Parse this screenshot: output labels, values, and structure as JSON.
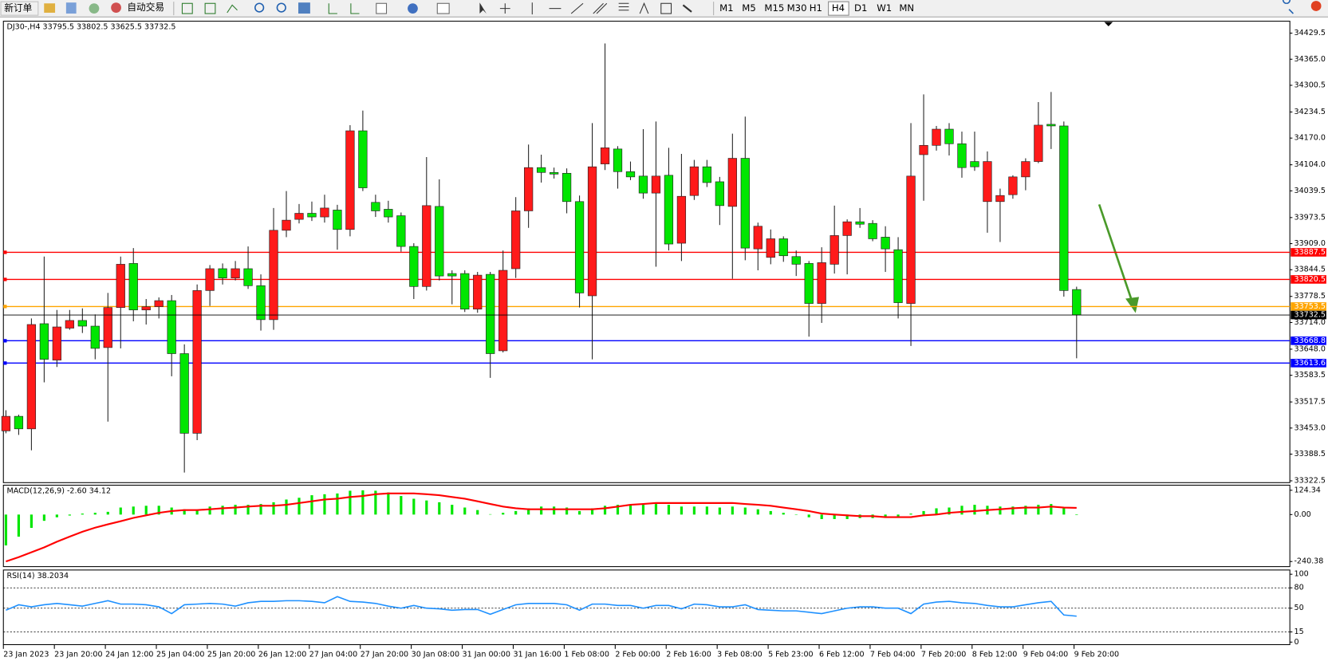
{
  "toolbar": {
    "buttons": [
      "新订单",
      "自动交易"
    ],
    "timeframes": [
      "M1",
      "M5",
      "M15",
      "M30",
      "H1",
      "H4",
      "D1",
      "W1",
      "MN"
    ],
    "active_timeframe": 5
  },
  "chart_data": [
    {
      "type": "candlestick",
      "title": "DJ30-,H4 33795.5 33802.5 33625.5 33732.5",
      "categories": [
        "23 Jan 2023",
        null,
        null,
        null,
        "23 Jan 20:00",
        null,
        null,
        null,
        "24 Jan 12:00",
        null,
        null,
        null,
        "25 Jan 04:00",
        null,
        null,
        null,
        "25 Jan 20:00",
        null,
        null,
        null,
        "26 Jan 12:00",
        null,
        null,
        null,
        "27 Jan 04:00",
        null,
        null,
        null,
        "27 Jan 20:00",
        null,
        null,
        null,
        "30 Jan 08:00",
        null,
        null,
        null,
        "31 Jan 00:00",
        null,
        null,
        null,
        "31 Jan 16:00",
        null,
        null,
        null,
        "1 Feb 08:00",
        null,
        null,
        null,
        "2 Feb 00:00",
        null,
        null,
        null,
        "2 Feb 16:00",
        null,
        null,
        null,
        "3 Feb 08:00",
        null,
        null,
        null,
        "5 Feb 23:00",
        null,
        null,
        null,
        "6 Feb 12:00",
        null,
        null,
        null,
        "7 Feb 04:00",
        null,
        null,
        null,
        "7 Feb 20:00",
        null,
        null,
        null,
        "8 Feb 12:00",
        null,
        null,
        null,
        "9 Feb 04:00",
        null,
        null,
        null,
        "9 Feb 20:00"
      ],
      "open": [
        33446,
        33482,
        33451,
        33711,
        33621,
        33700,
        33719,
        33705,
        33652,
        33751,
        33860,
        33745,
        33753,
        33768,
        33637,
        33440,
        33793,
        33847,
        33824,
        33847,
        33805,
        33721,
        33942,
        33969,
        33984,
        33975,
        33992,
        33944,
        34188,
        34011,
        33994,
        33978,
        33902,
        33803,
        34001,
        33835,
        33835,
        33747,
        33833,
        33644,
        33847,
        33990,
        34097,
        34085,
        34083,
        34013,
        33780,
        34106,
        34143,
        34087,
        34076,
        34034,
        34078,
        33910,
        34028,
        34099,
        34062,
        34001,
        34120,
        33896,
        33875,
        33921,
        33877,
        33860,
        33761,
        33858,
        33929,
        33963,
        33959,
        33925,
        33894,
        33761,
        34129,
        34152,
        34192,
        34156,
        34112,
        34013,
        34013,
        34030,
        34074,
        34112,
        34204,
        34200,
        33795.5
      ],
      "high": [
        33497,
        33486,
        33724,
        33877,
        33745,
        33745,
        33749,
        33734,
        33787,
        33877,
        33898,
        33772,
        33776,
        33782,
        33660,
        33808,
        33856,
        33860,
        33866,
        33902,
        33833,
        33997,
        34039,
        34007,
        34013,
        34030,
        34005,
        34202,
        34238,
        34030,
        34015,
        33986,
        33910,
        34123,
        34068,
        33843,
        33843,
        33839,
        33839,
        33892,
        34024,
        34154,
        34129,
        34097,
        34095,
        34028,
        34207,
        34404,
        34150,
        34112,
        34192,
        34211,
        34146,
        34131,
        34116,
        34116,
        34074,
        34181,
        34223,
        33961,
        33944,
        33927,
        33892,
        33866,
        33900,
        34003,
        33969,
        33997,
        33967,
        33952,
        33925,
        34207,
        34278,
        34200,
        34207,
        34186,
        34186,
        34137,
        34045,
        34078,
        34120,
        34259,
        34284,
        34211,
        33802.5
      ],
      "low": [
        33440,
        33436,
        33398,
        33566,
        33604,
        33696,
        33688,
        33623,
        33469,
        33650,
        33717,
        33709,
        33724,
        33581,
        33343,
        33423,
        33755,
        33808,
        33818,
        33797,
        33694,
        33696,
        33925,
        33959,
        33965,
        33961,
        33894,
        33927,
        34039,
        33975,
        33961,
        33889,
        33772,
        33793,
        33818,
        33759,
        33740,
        33738,
        33577,
        33640,
        33824,
        33948,
        34060,
        34070,
        33984,
        33751,
        33623,
        34091,
        34045,
        34066,
        34020,
        33852,
        33892,
        33866,
        34017,
        34049,
        33955,
        33822,
        33868,
        33843,
        33858,
        33864,
        33829,
        33679,
        33713,
        33835,
        33833,
        33948,
        33915,
        33839,
        33724,
        33656,
        34015,
        34139,
        34127,
        34072,
        34089,
        33936,
        33913,
        34020,
        34041,
        34108,
        34143,
        33778,
        33625.5
      ],
      "close": [
        33482,
        33451,
        33709,
        33623,
        33703,
        33719,
        33705,
        33650,
        33751,
        33858,
        33745,
        33753,
        33768,
        33637,
        33440,
        33793,
        33847,
        33824,
        33847,
        33805,
        33721,
        33942,
        33967,
        33984,
        33975,
        33997,
        33944,
        34188,
        34047,
        33990,
        33975,
        33902,
        33803,
        34003,
        33829,
        33829,
        33747,
        33831,
        33637,
        33843,
        33990,
        34097,
        34085,
        34081,
        34013,
        33787,
        34099,
        34146,
        34087,
        34074,
        34034,
        34076,
        33908,
        34026,
        34099,
        34060,
        34003,
        34120,
        33898,
        33952,
        33921,
        33879,
        33858,
        33761,
        33862,
        33929,
        33963,
        33957,
        33921,
        33896,
        33763,
        34076,
        34152,
        34192,
        34156,
        34097,
        34099,
        34112,
        34028,
        34074,
        34112,
        34202,
        34200,
        33793,
        33732.5
      ],
      "up_color": "#ff1a1a",
      "down_color": "#00e600",
      "ylim": [
        33318,
        34459
      ],
      "yticks": [
        34429.5,
        {
          "value": 34365,
          "label": "34365.0"
        },
        34300.5,
        34234.5,
        {
          "value": 34170,
          "label": "34170.0"
        },
        {
          "value": 34104,
          "label": "34104.0"
        },
        34039.5,
        33973.5,
        {
          "value": 33909,
          "label": "33909.0"
        },
        33844.5,
        33778.5,
        {
          "value": 33714,
          "label": "33714.0"
        },
        {
          "value": 33648,
          "label": "33648.0"
        },
        33583.5,
        33517.5,
        {
          "value": 33453,
          "label": "33453.0"
        },
        33388.5,
        33322.5
      ],
      "levels": [
        {
          "value": 33887.5,
          "color": "#ff0000"
        },
        {
          "value": 33820.5,
          "color": "#ff0000"
        },
        {
          "value": 33753.5,
          "color": "#ffa500"
        },
        {
          "value": 33668.8,
          "color": "#0000ff"
        },
        {
          "value": 33613.6,
          "color": "#0000ff"
        }
      ]
    },
    {
      "type": "macd",
      "title": "MACD(12,26,9) -2.60 34.12",
      "histogram": {
        "color": "#00e600",
        "values": [
          -158,
          -113,
          -68,
          -32,
          -14,
          -5,
          5,
          9,
          14,
          36,
          41,
          45,
          45,
          36,
          27,
          23,
          41,
          45,
          50,
          50,
          54,
          63,
          77,
          86,
          99,
          104,
          108,
          122,
          124,
          122,
          113,
          95,
          81,
          72,
          63,
          50,
          36,
          23,
          2,
          9,
          18,
          32,
          41,
          41,
          36,
          18,
          32,
          45,
          50,
          50,
          50,
          54,
          50,
          41,
          41,
          41,
          36,
          41,
          36,
          27,
          18,
          9,
          -2,
          -14,
          -23,
          -23,
          -23,
          -18,
          -18,
          -14,
          -9,
          5,
          18,
          32,
          36,
          45,
          50,
          45,
          41,
          41,
          45,
          50,
          54,
          32,
          -2.6
        ]
      },
      "signal": {
        "color": "#ff0000",
        "values": [
          -240,
          -218,
          -193,
          -168,
          -139,
          -113,
          -88,
          -67,
          -50,
          -34,
          -17,
          -4,
          9,
          18,
          23,
          23,
          27,
          32,
          36,
          41,
          45,
          45,
          50,
          59,
          68,
          77,
          81,
          90,
          95,
          104,
          108,
          108,
          108,
          104,
          99,
          90,
          81,
          68,
          54,
          41,
          32,
          27,
          27,
          27,
          27,
          27,
          27,
          32,
          41,
          50,
          54,
          59,
          59,
          59,
          59,
          59,
          59,
          59,
          54,
          50,
          45,
          36,
          27,
          18,
          5,
          0,
          -4,
          -8,
          -8,
          -13,
          -13,
          -13,
          -4,
          0,
          9,
          14,
          18,
          23,
          27,
          32,
          36,
          36,
          41,
          36,
          34.12
        ]
      },
      "ylim": [
        -266.4,
        150.4
      ],
      "yticks": [
        124.34,
        {
          "value": 0,
          "label": "0.00"
        },
        -240.38
      ]
    },
    {
      "type": "line",
      "title": "RSI(14) 38.2034",
      "values": [
        47,
        55,
        52,
        55,
        57,
        55,
        53,
        57,
        61,
        56,
        56,
        55,
        52,
        42,
        55,
        56,
        57,
        56,
        53,
        58,
        60,
        60,
        61,
        61,
        60,
        58,
        67,
        60,
        59,
        57,
        53,
        50,
        54,
        50,
        49,
        47,
        48,
        48,
        41,
        48,
        55,
        57,
        57,
        57,
        55,
        47,
        56,
        56,
        54,
        54,
        50,
        54,
        54,
        49,
        56,
        55,
        52,
        52,
        55,
        48,
        47,
        46,
        46,
        44,
        42,
        46,
        50,
        52,
        52,
        50,
        50,
        42,
        56,
        59,
        60,
        58,
        57,
        54,
        52,
        52,
        55,
        58,
        60,
        40,
        38.2034
      ],
      "color": "#1e90ff",
      "ylim": [
        -3.75,
        106.25
      ],
      "yticks": [
        100,
        80,
        50,
        15,
        0
      ],
      "levels": [
        80,
        50,
        15
      ]
    }
  ]
}
